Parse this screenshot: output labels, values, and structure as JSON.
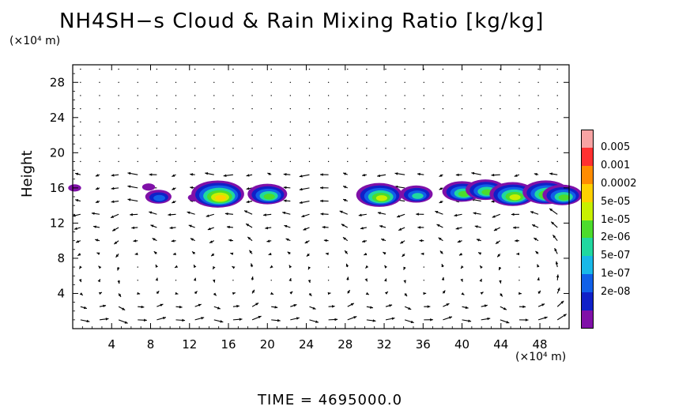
{
  "title": "NH4SH−s Cloud & Rain Mixing Ratio [kg/kg]",
  "time_label": "TIME  =  4695000.0",
  "chart_data": {
    "type": "heatmap",
    "title": "NH4SH−s Cloud & Rain Mixing Ratio [kg/kg]",
    "xlabel": "",
    "ylabel": "Height",
    "x_unit": "(×10⁴ m)",
    "y_unit": "(×10⁴ m)",
    "xlim": [
      0,
      51
    ],
    "ylim": [
      0,
      30
    ],
    "xticks": [
      4,
      8,
      12,
      16,
      20,
      24,
      28,
      32,
      36,
      40,
      44,
      48
    ],
    "yticks": [
      4,
      8,
      12,
      16,
      20,
      24,
      28
    ],
    "overlay": "wind vectors",
    "legend_position": "right",
    "colorbar": {
      "labels": [
        "0.005",
        "0.001",
        "0.0002",
        "5e-05",
        "1e-05",
        "2e-06",
        "5e-07",
        "1e-07",
        "2e-08"
      ],
      "colors": [
        "#f7a3a3",
        "#ff3030",
        "#ff8c00",
        "#ffd000",
        "#c8f000",
        "#4cdc2c",
        "#20d8a0",
        "#18b8e8",
        "#1060e8",
        "#1020c8",
        "#8010a8"
      ]
    },
    "cloud_regions": [
      {
        "x": 0.2,
        "y": 16.0,
        "level": 1
      },
      {
        "x": 7.8,
        "y": 16.1,
        "level": 1
      },
      {
        "x": 8.8,
        "y": 15.0,
        "level": 3
      },
      {
        "x": 12.5,
        "y": 14.9,
        "level": 1
      },
      {
        "x": 14.9,
        "y": 15.3,
        "level": 7
      },
      {
        "x": 20.0,
        "y": 15.3,
        "level": 5
      },
      {
        "x": 31.5,
        "y": 15.2,
        "level": 6
      },
      {
        "x": 35.3,
        "y": 15.3,
        "level": 4
      },
      {
        "x": 40.0,
        "y": 15.6,
        "level": 5
      },
      {
        "x": 42.4,
        "y": 15.8,
        "level": 5
      },
      {
        "x": 45.2,
        "y": 15.3,
        "level": 6
      },
      {
        "x": 48.6,
        "y": 15.5,
        "level": 6
      },
      {
        "x": 50.3,
        "y": 15.2,
        "level": 5
      }
    ]
  }
}
